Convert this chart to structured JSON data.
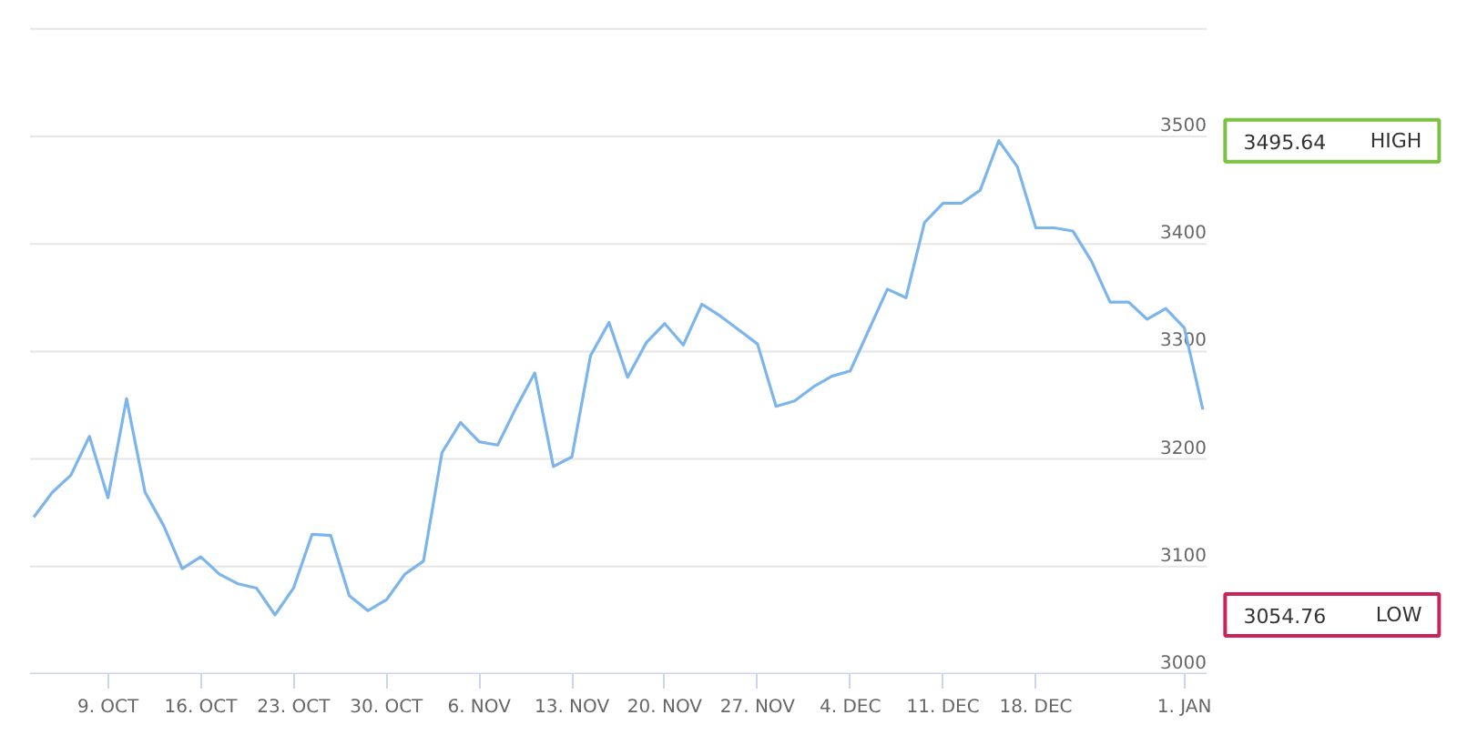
{
  "chart_data": {
    "type": "line",
    "categories": [
      null,
      null,
      null,
      null,
      "9. OCT",
      null,
      null,
      null,
      null,
      "16. OCT",
      null,
      null,
      null,
      null,
      "23. OCT",
      null,
      null,
      null,
      null,
      "30. OCT",
      null,
      null,
      null,
      null,
      "6. NOV",
      null,
      null,
      null,
      null,
      "13. NOV",
      null,
      null,
      null,
      null,
      "20. NOV",
      null,
      null,
      null,
      null,
      "27. NOV",
      null,
      null,
      null,
      null,
      "4. DEC",
      null,
      null,
      null,
      null,
      "11. DEC",
      null,
      null,
      null,
      null,
      "18. DEC",
      null,
      null,
      null,
      null,
      null,
      null,
      null,
      "1. JAN",
      null
    ],
    "series": [
      {
        "color": "#7cb5ec",
        "values": [
          3146,
          3169,
          3185,
          3221,
          3164,
          3256,
          3169,
          3138,
          3098,
          3109,
          3093,
          3084,
          3080,
          3055,
          3080,
          3130,
          3129,
          3073,
          3059,
          3069,
          3093,
          3105,
          3206,
          3234,
          3216,
          3213,
          3248,
          3280,
          3193,
          3202,
          3296,
          3327,
          3276,
          3308,
          3326,
          3306,
          3344,
          3333,
          3320,
          3307,
          3249,
          3254,
          3267,
          3277,
          3282,
          3320,
          3358,
          3350,
          3420,
          3438,
          3438,
          3450,
          3496,
          3472,
          3415,
          3415,
          3412,
          3384,
          3346,
          3346,
          3330,
          3340,
          3322,
          3246
        ]
      }
    ],
    "ylim": [
      3000,
      3600
    ],
    "yticks": [
      3000,
      3100,
      3200,
      3300,
      3400,
      3500,
      {
        "value": 3600,
        "label": null
      }
    ],
    "grid": "y",
    "marker": "none",
    "line_style": "solid",
    "annotations": [
      "3495.64",
      "HIGH",
      "3054.76",
      "LOW"
    ]
  }
}
